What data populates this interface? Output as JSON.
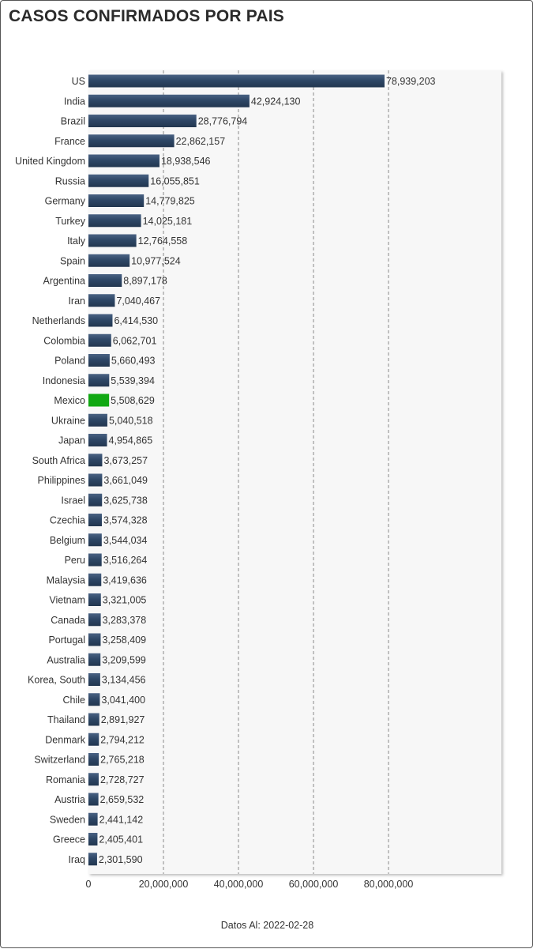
{
  "title": "CASOS CONFIRMADOS POR PAIS",
  "footer": "Datos Al: 2022-02-28",
  "chart_data": {
    "type": "bar",
    "orientation": "horizontal",
    "title": "CASOS CONFIRMADOS POR PAIS",
    "xlabel": "",
    "ylabel": "",
    "xlim": [
      0,
      100000000
    ],
    "x_ticks": [
      0,
      20000000,
      40000000,
      60000000,
      80000000
    ],
    "x_tick_labels": [
      "0",
      "20,000,000",
      "40,000,000",
      "60,000,000",
      "80,000,000"
    ],
    "grid": "vertical dashed",
    "bar_color": "#2e4766",
    "highlight_color": "#10a812",
    "highlight_category": "Mexico",
    "categories": [
      "US",
      "India",
      "Brazil",
      "France",
      "United Kingdom",
      "Russia",
      "Germany",
      "Turkey",
      "Italy",
      "Spain",
      "Argentina",
      "Iran",
      "Netherlands",
      "Colombia",
      "Poland",
      "Indonesia",
      "Mexico",
      "Ukraine",
      "Japan",
      "South Africa",
      "Philippines",
      "Israel",
      "Czechia",
      "Belgium",
      "Peru",
      "Malaysia",
      "Vietnam",
      "Canada",
      "Portugal",
      "Australia",
      "Korea, South",
      "Chile",
      "Thailand",
      "Denmark",
      "Switzerland",
      "Romania",
      "Austria",
      "Sweden",
      "Greece",
      "Iraq"
    ],
    "values": [
      78939203,
      42924130,
      28776794,
      22862157,
      18938546,
      16055851,
      14779825,
      14025181,
      12764558,
      10977524,
      8897178,
      7040467,
      6414530,
      6062701,
      5660493,
      5539394,
      5508629,
      5040518,
      4954865,
      3673257,
      3661049,
      3625738,
      3574328,
      3544034,
      3516264,
      3419636,
      3321005,
      3283378,
      3258409,
      3209599,
      3134456,
      3041400,
      2891927,
      2794212,
      2765218,
      2728727,
      2659532,
      2441142,
      2405401,
      2301590
    ],
    "value_labels": [
      "78,939,203",
      "42,924,130",
      "28,776,794",
      "22,862,157",
      "18,938,546",
      "16,055,851",
      "14,779,825",
      "14,025,181",
      "12,764,558",
      "10,977,524",
      "8,897,178",
      "7,040,467",
      "6,414,530",
      "6,062,701",
      "5,660,493",
      "5,539,394",
      "5,508,629",
      "5,040,518",
      "4,954,865",
      "3,673,257",
      "3,661,049",
      "3,625,738",
      "3,574,328",
      "3,544,034",
      "3,516,264",
      "3,419,636",
      "3,321,005",
      "3,283,378",
      "3,258,409",
      "3,209,599",
      "3,134,456",
      "3,041,400",
      "2,891,927",
      "2,794,212",
      "2,765,218",
      "2,728,727",
      "2,659,532",
      "2,441,142",
      "2,405,401",
      "2,301,590"
    ]
  }
}
